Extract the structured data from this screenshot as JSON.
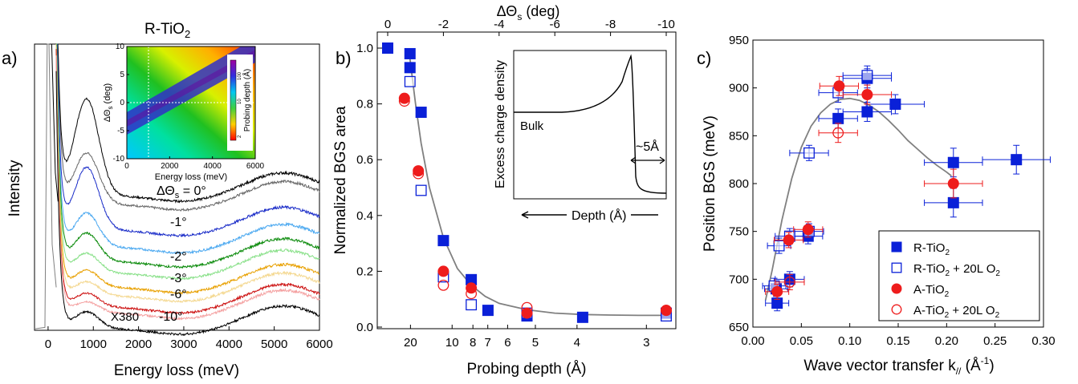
{
  "colors": {
    "blue": "#0a20d8",
    "red": "#ee1c1c",
    "gray": "#808080",
    "black": "#000000"
  },
  "chart_data": [
    {
      "panel_label": "a)",
      "type": "line",
      "title": "R-TiO2",
      "title_main": "R-TiO",
      "title_sub": "2",
      "xlabel": "Energy loss (meV)",
      "ylabel": "Intensity",
      "xlim": [
        -300,
        6000
      ],
      "xticks": [
        0,
        1000,
        2000,
        3000,
        4000,
        5000,
        6000
      ],
      "series_labels": [
        {
          "name": "dtheta_0",
          "text": "ΔΘs = 0°",
          "color": "#000000"
        },
        {
          "name": "dtheta_-1",
          "text": "-1°",
          "color": "#1a2cc8"
        },
        {
          "name": "dtheta_-2",
          "text": "-2°",
          "color": "#0a8a0a"
        },
        {
          "name": "dtheta_-3",
          "text": "-3°",
          "color": "#e8a000"
        },
        {
          "name": "dtheta_-6",
          "text": "-6°",
          "color": "#cc1010"
        },
        {
          "name": "dtheta_-10",
          "text": "-10°",
          "color": "#000000"
        }
      ],
      "curves": [
        {
          "angle": "0°",
          "color": "#666666",
          "offset": 0.44,
          "peak": 0.18
        },
        {
          "angle": "0°",
          "color": "#000000",
          "offset": 0.47,
          "peak": 0.34
        },
        {
          "angle": "-1°",
          "color": "#1a2cc8",
          "offset": 0.35,
          "peak": 0.22
        },
        {
          "angle": "-1°",
          "color": "#4aa8f0",
          "offset": 0.29,
          "peak": 0.12
        },
        {
          "angle": "-2°",
          "color": "#0a8a0a",
          "offset": 0.24,
          "peak": 0.1
        },
        {
          "angle": "-2°",
          "color": "#88e088",
          "offset": 0.2,
          "peak": 0.07
        },
        {
          "angle": "-3°",
          "color": "#e8a000",
          "offset": 0.15,
          "peak": 0.06
        },
        {
          "angle": "-3°",
          "color": "#f4d890",
          "offset": 0.12,
          "peak": 0.05
        },
        {
          "angle": "-6°",
          "color": "#cc1010",
          "offset": 0.08,
          "peak": 0.05
        },
        {
          "angle": "-6°",
          "color": "#f4a0a0",
          "offset": 0.06,
          "peak": 0.04
        },
        {
          "angle": "-10°",
          "color": "#000000",
          "offset": 0.005,
          "peak": 0.06
        }
      ],
      "elastic_label": "X380",
      "inset": {
        "type": "heatmap",
        "xlabel": "Energy loss (meV)",
        "ylabel": "ΔΘs (deg)",
        "ylabel_main": "ΔΘ",
        "ylabel_sub": "s",
        "ylabel_tail": " (deg)",
        "colorbar_label": "Probing depth (Å)",
        "xlim": [
          0,
          6000
        ],
        "ylim": [
          -10,
          10
        ],
        "xticks": [
          0,
          2000,
          4000,
          6000
        ],
        "yticks": [
          -10,
          -5,
          0,
          5,
          10
        ],
        "cbar_ticks": [
          "2",
          "10",
          "100"
        ]
      }
    },
    {
      "panel_label": "b)",
      "type": "scatter",
      "xlabel": "Probing depth (Å)",
      "ylabel": "Normalized BGS area",
      "top_xlabel": "ΔΘs (deg)",
      "top_xlabel_main": "ΔΘ",
      "top_xlabel_sub": "s",
      "top_xlabel_tail": " (deg)",
      "ylim": [
        0,
        1.0
      ],
      "yticks": [
        0.0,
        0.2,
        0.4,
        0.6,
        0.8,
        1.0
      ],
      "top_xlim": [
        0,
        -10
      ],
      "top_xticks": [
        0,
        -2,
        -4,
        -6,
        -8,
        -10
      ],
      "bottom_xticks": [
        {
          "label": "20",
          "depth": 20
        },
        {
          "label": "10",
          "depth": 10
        },
        {
          "label": "8",
          "depth": 8
        },
        {
          "label": "7",
          "depth": 7
        },
        {
          "label": "6",
          "depth": 6
        },
        {
          "label": "5",
          "depth": 5
        },
        {
          "label": "4",
          "depth": 4
        },
        {
          "label": "3",
          "depth": 3
        }
      ],
      "series": [
        {
          "name": "R-TiO2",
          "marker": "filled-square",
          "color": "#0a20d8",
          "points": [
            [
              0,
              1.0
            ],
            [
              -0.8,
              0.98
            ],
            [
              -0.8,
              0.93
            ],
            [
              -1.2,
              0.77
            ],
            [
              -2.0,
              0.31
            ],
            [
              -3.0,
              0.17
            ],
            [
              -3.6,
              0.06
            ],
            [
              -5.0,
              0.04
            ],
            [
              -7.0,
              0.035
            ],
            [
              -10.0,
              0.05
            ]
          ]
        },
        {
          "name": "R-TiO2 + 20L O2",
          "marker": "open-square",
          "color": "#0a20d8",
          "points": [
            [
              -0.8,
              0.88
            ],
            [
              -1.2,
              0.49
            ],
            [
              -2.0,
              0.18
            ],
            [
              -3.0,
              0.08
            ],
            [
              -5.0,
              0.05
            ],
            [
              -10.0,
              0.04
            ]
          ]
        },
        {
          "name": "A-TiO2",
          "marker": "filled-circle",
          "color": "#ee1c1c",
          "points": [
            [
              -0.6,
              0.82
            ],
            [
              -1.1,
              0.56
            ],
            [
              -2.0,
              0.2
            ],
            [
              -3.0,
              0.14
            ],
            [
              -5.0,
              0.05
            ],
            [
              -10.0,
              0.06
            ]
          ]
        },
        {
          "name": "A-TiO2 + 20L O2",
          "marker": "open-circle",
          "color": "#ee1c1c",
          "points": [
            [
              -0.6,
              0.81
            ],
            [
              -1.1,
              0.55
            ],
            [
              -2.0,
              0.15
            ],
            [
              -3.0,
              0.12
            ],
            [
              -5.0,
              0.07
            ],
            [
              -10.0,
              0.06
            ]
          ]
        }
      ],
      "fit": {
        "color": "#808080",
        "points": [
          [
            -0.8,
            0.96
          ],
          [
            -1.0,
            0.8
          ],
          [
            -1.2,
            0.66
          ],
          [
            -1.5,
            0.5
          ],
          [
            -2.0,
            0.32
          ],
          [
            -2.5,
            0.21
          ],
          [
            -3.0,
            0.15
          ],
          [
            -3.5,
            0.11
          ],
          [
            -4.0,
            0.085
          ],
          [
            -5.0,
            0.062
          ],
          [
            -6.0,
            0.05
          ],
          [
            -7.0,
            0.045
          ],
          [
            -8.0,
            0.043
          ],
          [
            -9.0,
            0.042
          ],
          [
            -10.0,
            0.042
          ]
        ]
      },
      "inset": {
        "ylabel": "Excess charge density",
        "bulk_label": "Bulk",
        "depth_label": "Depth (Å)",
        "thickness_label": "~5Å"
      }
    },
    {
      "panel_label": "c)",
      "type": "scatter",
      "xlabel": "Wave vector transfer k// (Å-1)",
      "xlabel_main": "Wave vector transfer k",
      "xlabel_sub": "//",
      "xlabel_mid": " (Å",
      "xlabel_sup": "-1",
      "xlabel_tail": ")",
      "ylabel": "Position BGS (meV)",
      "xlim": [
        0.0,
        0.3
      ],
      "ylim": [
        650,
        950
      ],
      "xticks": [
        0.0,
        0.05,
        0.1,
        0.15,
        0.2,
        0.25,
        0.3
      ],
      "yticks": [
        650,
        700,
        750,
        800,
        850,
        900,
        950
      ],
      "series": [
        {
          "name": "R-TiO2",
          "name_main": "R-TiO",
          "name_sub": "2",
          "name_tail": "",
          "marker": "filled-square",
          "color": "#0a20d8",
          "points": [
            [
              0.025,
              675,
              0.012,
              8
            ],
            [
              0.024,
              690,
              0.012,
              8
            ],
            [
              0.038,
              700,
              0.015,
              8
            ],
            [
              0.057,
              745,
              0.015,
              8
            ],
            [
              0.088,
              868,
              0.02,
              10
            ],
            [
              0.118,
              875,
              0.025,
              10
            ],
            [
              0.118,
              910,
              0.025,
              10
            ],
            [
              0.147,
              883,
              0.03,
              10
            ],
            [
              0.207,
              780,
              0.03,
              15
            ],
            [
              0.207,
              822,
              0.03,
              15
            ],
            [
              0.272,
              825,
              0.035,
              15
            ]
          ]
        },
        {
          "name": "R-TiO2 + 20L O2",
          "name_main": "R-TiO",
          "name_sub": "2",
          "name_tail": " + 20L O",
          "name_sub2": "2",
          "marker": "open-square",
          "color": "#0a20d8",
          "points": [
            [
              0.022,
              693,
              0.012,
              8
            ],
            [
              0.027,
              735,
              0.012,
              8
            ],
            [
              0.038,
              745,
              0.015,
              8
            ],
            [
              0.058,
              750,
              0.015,
              8
            ],
            [
              0.058,
              832,
              0.02,
              8
            ],
            [
              0.088,
              895,
              0.02,
              10
            ],
            [
              0.118,
              913,
              0.025,
              10
            ]
          ]
        },
        {
          "name": "A-TiO2",
          "name_main": "A-TiO",
          "name_sub": "2",
          "name_tail": "",
          "marker": "filled-circle",
          "color": "#ee1c1c",
          "points": [
            [
              0.025,
              687,
              0.012,
              8
            ],
            [
              0.037,
              741,
              0.015,
              8
            ],
            [
              0.057,
              752,
              0.015,
              8
            ],
            [
              0.089,
              902,
              0.02,
              10
            ],
            [
              0.118,
              893,
              0.025,
              10
            ],
            [
              0.207,
              800,
              0.03,
              15
            ]
          ]
        },
        {
          "name": "A-TiO2 + 20L O2",
          "name_main": "A-TiO",
          "name_sub": "2",
          "name_tail": " + 20L O",
          "name_sub2": "2",
          "marker": "open-circle",
          "color": "#ee1c1c",
          "points": [
            [
              0.038,
              697,
              0.015,
              8
            ],
            [
              0.088,
              853,
              0.02,
              10
            ]
          ]
        }
      ],
      "fit": {
        "color": "#808080",
        "points": [
          [
            0.013,
            678
          ],
          [
            0.02,
            710
          ],
          [
            0.03,
            762
          ],
          [
            0.04,
            805
          ],
          [
            0.05,
            838
          ],
          [
            0.06,
            860
          ],
          [
            0.07,
            874
          ],
          [
            0.08,
            883
          ],
          [
            0.09,
            888
          ],
          [
            0.1,
            889
          ],
          [
            0.11,
            887
          ],
          [
            0.12,
            882
          ],
          [
            0.13,
            875
          ],
          [
            0.14,
            866
          ],
          [
            0.15,
            856
          ],
          [
            0.16,
            845
          ],
          [
            0.17,
            836
          ],
          [
            0.18,
            827
          ],
          [
            0.19,
            819
          ],
          [
            0.2,
            812
          ],
          [
            0.205,
            808
          ]
        ]
      },
      "legend_position": "bottom-right"
    }
  ]
}
